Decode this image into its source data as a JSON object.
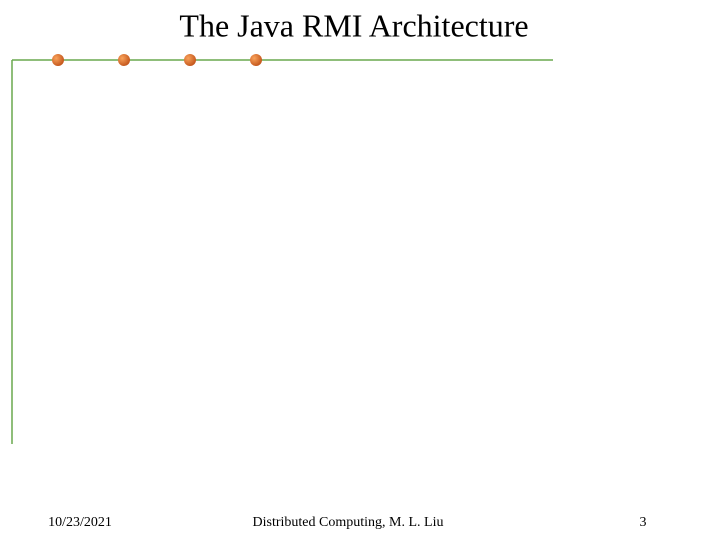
{
  "header": {
    "title": "The Java RMI Architecture"
  },
  "footer": {
    "date": "10/23/2021",
    "center": "Distributed Computing, M. L. Liu",
    "page": "3"
  }
}
